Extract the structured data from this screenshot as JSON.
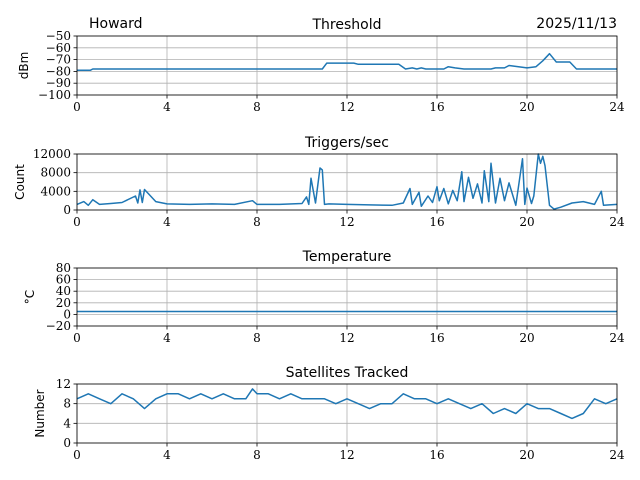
{
  "header": {
    "station": "Howard",
    "date": "2025/11/13"
  },
  "chart_data": [
    {
      "type": "line",
      "title": "Threshold",
      "xlabel": "",
      "ylabel": "dBm",
      "xlim": [
        0,
        24
      ],
      "ylim": [
        -100,
        -50
      ],
      "xticks": [
        0,
        4,
        8,
        12,
        16,
        20,
        24
      ],
      "yticks": [
        -50,
        -60,
        -70,
        -80,
        -90,
        -100
      ],
      "ytick_labels": [
        "−50",
        "−60",
        "−70",
        "−80",
        "−90",
        "−100"
      ],
      "grid": true,
      "color": "#1f77b4",
      "x": [
        0,
        0.6,
        0.7,
        4,
        8,
        10.4,
        10.6,
        10.9,
        11.1,
        12.3,
        12.5,
        14.3,
        14.6,
        14.9,
        15.1,
        15.3,
        15.5,
        15.7,
        16.3,
        16.5,
        16.8,
        17.2,
        18.4,
        18.6,
        19,
        19.2,
        20,
        20.4,
        20.7,
        21,
        21.3,
        21.9,
        22.2,
        24
      ],
      "y": [
        -79,
        -79,
        -78,
        -78,
        -78,
        -78,
        -78,
        -78,
        -73,
        -73,
        -74,
        -74,
        -78,
        -77,
        -78,
        -77,
        -78,
        -78,
        -78,
        -76,
        -77,
        -78,
        -78,
        -77,
        -77,
        -75,
        -77,
        -76,
        -71,
        -65,
        -72,
        -72,
        -78,
        -78
      ]
    },
    {
      "type": "line",
      "title": "Triggers/sec",
      "xlabel": "",
      "ylabel": "Count",
      "xlim": [
        0,
        24
      ],
      "ylim": [
        0,
        12000
      ],
      "xticks": [
        0,
        4,
        8,
        12,
        16,
        20,
        24
      ],
      "yticks": [
        0,
        4000,
        8000,
        12000
      ],
      "ytick_labels": [
        "0",
        "4000",
        "8000",
        "12000"
      ],
      "grid": true,
      "color": "#1f77b4",
      "x": [
        0,
        0.3,
        0.5,
        0.7,
        1,
        1.5,
        2,
        2.6,
        2.7,
        2.8,
        2.9,
        3,
        3.5,
        4,
        5,
        6,
        7,
        7.8,
        8,
        9,
        10,
        10.2,
        10.3,
        10.4,
        10.6,
        10.8,
        10.9,
        11,
        11.2,
        12,
        13,
        14,
        14.5,
        14.8,
        14.9,
        15.2,
        15.3,
        15.6,
        15.8,
        16,
        16.1,
        16.3,
        16.5,
        16.7,
        16.9,
        17.1,
        17.2,
        17.4,
        17.6,
        17.8,
        18,
        18.1,
        18.3,
        18.4,
        18.6,
        18.8,
        19,
        19.2,
        19.5,
        19.8,
        19.9,
        20,
        20.2,
        20.3,
        20.5,
        20.6,
        20.7,
        20.8,
        21,
        21.2,
        21.5,
        22,
        22.5,
        23,
        23.3,
        23.4,
        24
      ],
      "y": [
        1200,
        1800,
        1000,
        2200,
        1200,
        1400,
        1600,
        3000,
        1500,
        4300,
        1600,
        4400,
        1800,
        1300,
        1200,
        1300,
        1200,
        2000,
        1200,
        1200,
        1400,
        2800,
        1200,
        6800,
        1500,
        9000,
        8600,
        1200,
        1300,
        1200,
        1100,
        1000,
        1500,
        4600,
        1200,
        3800,
        800,
        3000,
        1600,
        5000,
        2000,
        4600,
        1300,
        4200,
        2000,
        8200,
        1800,
        7000,
        2500,
        5600,
        1500,
        8400,
        1800,
        10000,
        1500,
        6800,
        2000,
        5800,
        1000,
        11000,
        1200,
        4700,
        1400,
        3000,
        12000,
        10000,
        11500,
        9500,
        1000,
        200,
        600,
        1500,
        1800,
        1200,
        4000,
        1000,
        1200
      ]
    },
    {
      "type": "line",
      "title": "Temperature",
      "xlabel": "",
      "ylabel": "°C",
      "xlim": [
        0,
        24
      ],
      "ylim": [
        -20,
        80
      ],
      "xticks": [
        0,
        4,
        8,
        12,
        16,
        20,
        24
      ],
      "yticks": [
        -20,
        0,
        20,
        40,
        60,
        80
      ],
      "ytick_labels": [
        "−20",
        "0",
        "20",
        "40",
        "60",
        "80"
      ],
      "grid": true,
      "color": "#1f77b4",
      "x": [
        0,
        24
      ],
      "y": [
        5,
        5
      ]
    },
    {
      "type": "line",
      "title": "Satellites Tracked",
      "xlabel": "",
      "ylabel": "Number",
      "xlim": [
        0,
        24
      ],
      "ylim": [
        0,
        12
      ],
      "xticks": [
        0,
        4,
        8,
        12,
        16,
        20,
        24
      ],
      "yticks": [
        0,
        4,
        8,
        12
      ],
      "ytick_labels": [
        "0",
        "4",
        "8",
        "12"
      ],
      "grid": true,
      "color": "#1f77b4",
      "x": [
        0,
        0.5,
        1,
        1.5,
        2,
        2.5,
        3,
        3.5,
        4,
        4.5,
        5,
        5.5,
        6,
        6.5,
        7,
        7.5,
        7.8,
        8,
        8.5,
        9,
        9.5,
        10,
        10.5,
        11,
        11.5,
        12,
        12.5,
        13,
        13.5,
        14,
        14.5,
        15,
        15.5,
        16,
        16.5,
        17,
        17.5,
        18,
        18.5,
        19,
        19.5,
        20,
        20.5,
        21,
        21.5,
        22,
        22.5,
        23,
        23.5,
        24
      ],
      "y": [
        9,
        10,
        9,
        8,
        10,
        9,
        7,
        9,
        10,
        10,
        9,
        10,
        9,
        10,
        9,
        9,
        11,
        10,
        10,
        9,
        10,
        9,
        9,
        9,
        8,
        9,
        8,
        7,
        8,
        8,
        10,
        9,
        9,
        8,
        9,
        8,
        7,
        8,
        6,
        7,
        6,
        8,
        7,
        7,
        6,
        5,
        6,
        9,
        8,
        9
      ]
    }
  ]
}
